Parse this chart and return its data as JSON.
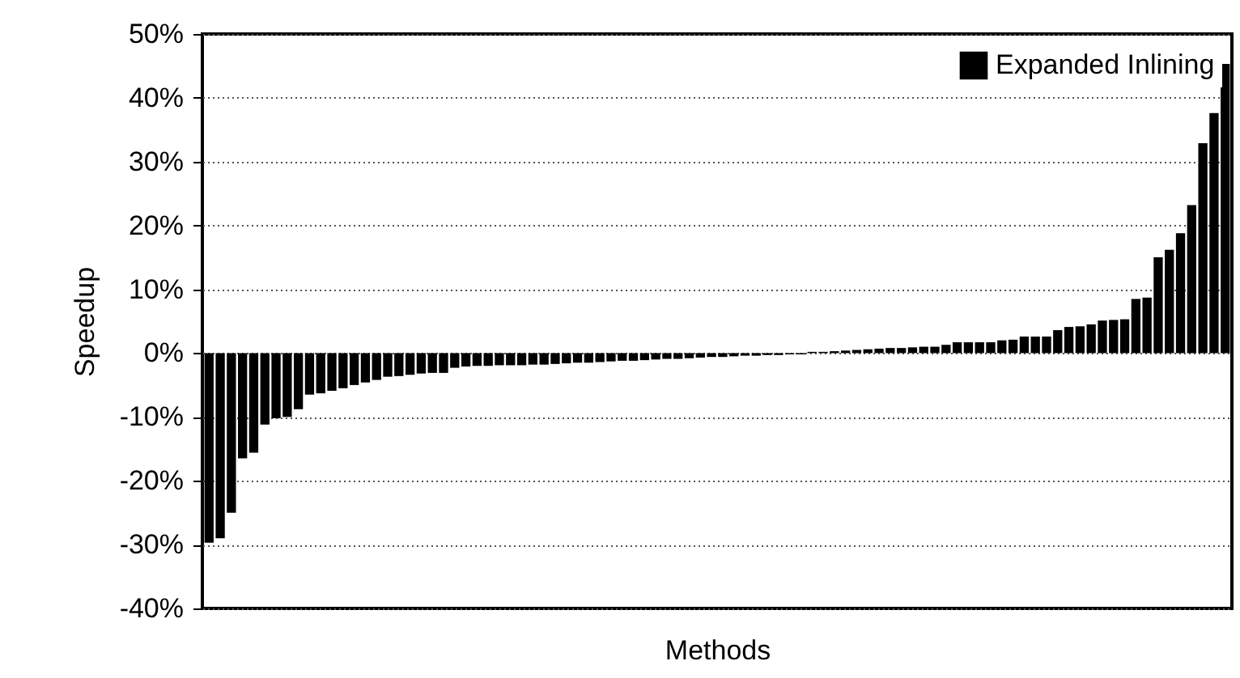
{
  "chart_data": {
    "type": "bar",
    "xlabel": "Methods",
    "ylabel": "Speedup",
    "categories": [
      null,
      null,
      null,
      null,
      null,
      null,
      null,
      null,
      null,
      null,
      null,
      null,
      null,
      null,
      null,
      null,
      null,
      null,
      null,
      null,
      null,
      null,
      null,
      null,
      null,
      null,
      null,
      null,
      null,
      null,
      null,
      null,
      null,
      null,
      null,
      null,
      null,
      null,
      null,
      null,
      null,
      null,
      null,
      null,
      null,
      null,
      null,
      null,
      null,
      null,
      null,
      null,
      null,
      null,
      null,
      null,
      null,
      null,
      null,
      null,
      null,
      null,
      null,
      null,
      null,
      null,
      null,
      null,
      null,
      null,
      null,
      null,
      null,
      null,
      null,
      null,
      null,
      null,
      null,
      null,
      null,
      null,
      null,
      null,
      null,
      null,
      null,
      null,
      null,
      null,
      null,
      null
    ],
    "series": [
      {
        "name": "Expanded Inlining",
        "color": "#000000",
        "values": [
          -29.7,
          -29,
          -25,
          -16.5,
          -15.6,
          -11.2,
          -10.2,
          -10,
          -8.8,
          -6.5,
          -6.3,
          -5.9,
          -5.5,
          -5,
          -4.6,
          -4.2,
          -3.7,
          -3.6,
          -3.4,
          -3.2,
          -3.1,
          -3.1,
          -2.3,
          -2.1,
          -2,
          -2,
          -1.9,
          -1.9,
          -1.9,
          -1.8,
          -1.8,
          -1.7,
          -1.6,
          -1.5,
          -1.5,
          -1.4,
          -1.3,
          -1.2,
          -1.2,
          -1.1,
          -1,
          -0.9,
          -0.9,
          -0.8,
          -0.7,
          -0.6,
          -0.6,
          -0.5,
          -0.4,
          -0.4,
          -0.3,
          -0.3,
          -0.2,
          -0.2,
          0.2,
          0.2,
          0.3,
          0.4,
          0.5,
          0.6,
          0.7,
          0.8,
          0.8,
          0.9,
          1,
          1,
          1.3,
          1.7,
          1.7,
          1.7,
          1.7,
          2,
          2.1,
          2.6,
          2.6,
          2.6,
          3.6,
          4.1,
          4.2,
          4.5,
          5.1,
          5.2,
          5.3,
          8.5,
          8.7,
          15,
          16.2,
          18.8,
          23.2,
          32.9,
          37.6,
          45.3
        ]
      }
    ],
    "ylim": [
      -40,
      50
    ],
    "yticks": [
      {
        "value": -40,
        "label": "-40%"
      },
      {
        "value": -30,
        "label": "-30%"
      },
      {
        "value": -20,
        "label": "-20%"
      },
      {
        "value": -10,
        "label": "-10%"
      },
      {
        "value": 0,
        "label": "0%"
      },
      {
        "value": 10,
        "label": "10%"
      },
      {
        "value": 20,
        "label": "20%"
      },
      {
        "value": 30,
        "label": "30%"
      },
      {
        "value": 40,
        "label": "40%"
      },
      {
        "value": 50,
        "label": "50%"
      }
    ],
    "grid": "y",
    "legend": "top right",
    "tick_labels": "y"
  }
}
